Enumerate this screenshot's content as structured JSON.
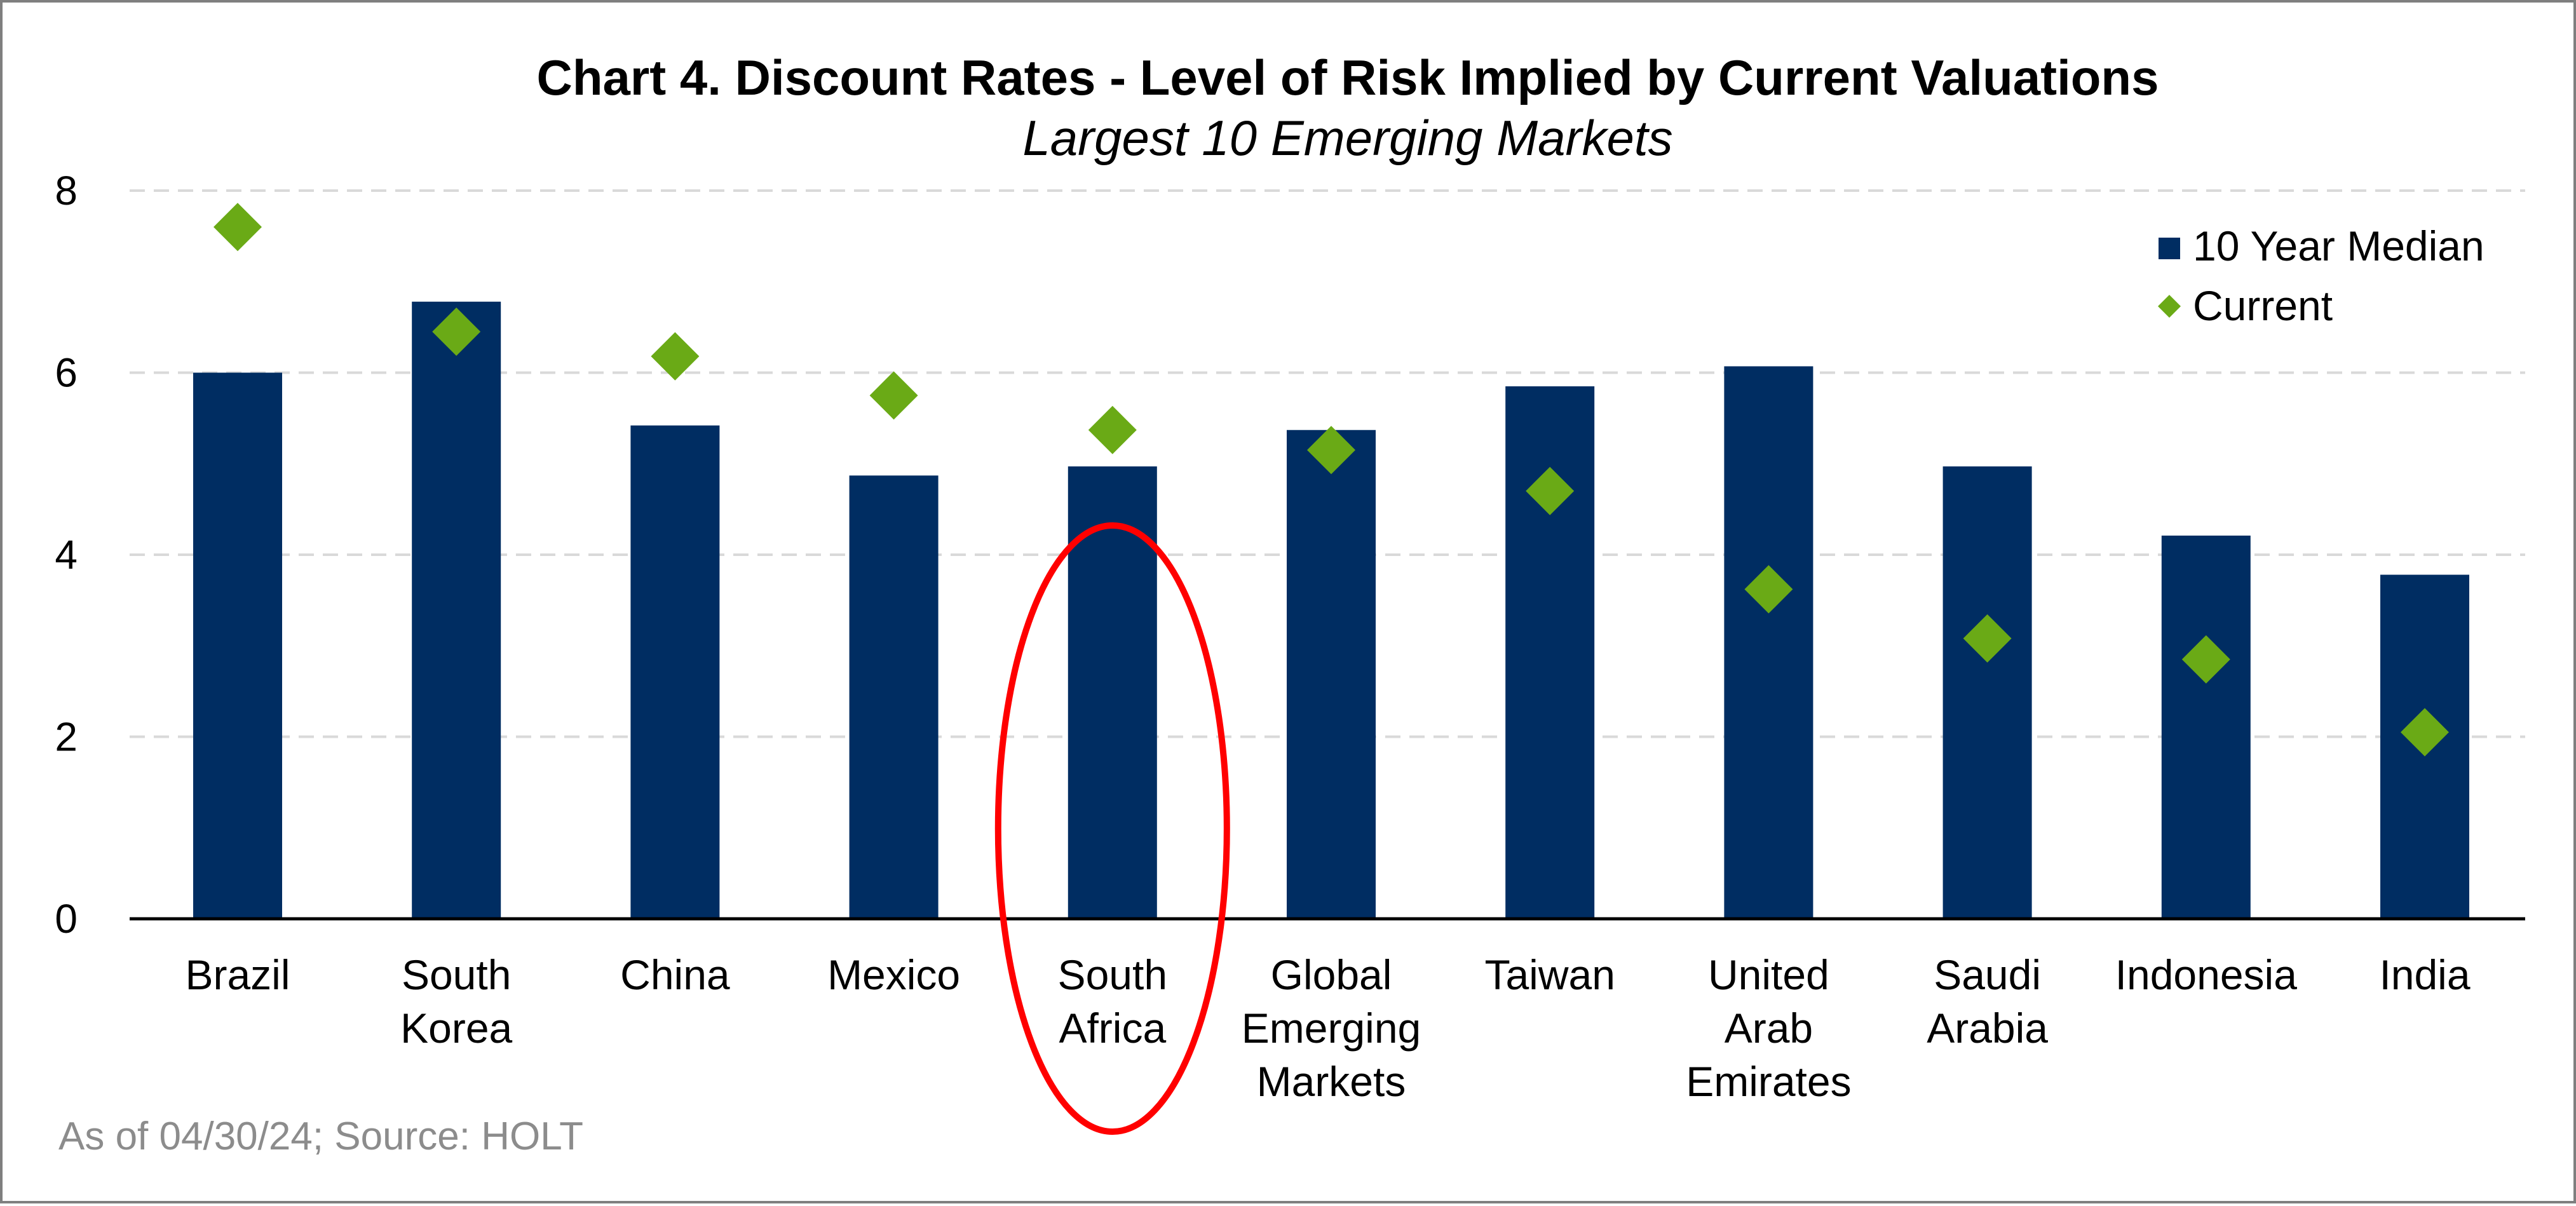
{
  "chart_data": {
    "type": "bar",
    "title": "Chart 4. Discount Rates - Level of Risk Implied by Current Valuations",
    "subtitle": "Largest 10 Emerging Markets",
    "categories": [
      [
        "Brazil"
      ],
      [
        "South",
        "Korea"
      ],
      [
        "China"
      ],
      [
        "Mexico"
      ],
      [
        "South",
        "Africa"
      ],
      [
        "Global",
        "Emerging",
        "Markets"
      ],
      [
        "Taiwan"
      ],
      [
        "United",
        "Arab",
        "Emirates"
      ],
      [
        "Saudi",
        "Arabia"
      ],
      [
        "Indonesia"
      ],
      [
        "India"
      ]
    ],
    "series": [
      {
        "name": "10 Year Median",
        "kind": "bar",
        "color": "#002d62",
        "values": [
          6.0,
          6.78,
          5.42,
          4.87,
          4.97,
          5.37,
          5.85,
          6.07,
          4.97,
          4.21,
          3.78
        ]
      },
      {
        "name": "Current",
        "kind": "diamond",
        "color": "#6aaa16",
        "values": [
          7.6,
          6.45,
          6.18,
          5.75,
          5.37,
          5.15,
          4.7,
          3.62,
          3.08,
          2.85,
          2.05
        ]
      }
    ],
    "ylim": [
      0,
      8
    ],
    "yticks": [
      0,
      2,
      4,
      6,
      8
    ],
    "grid": true,
    "legend": "top-right",
    "highlight": {
      "category": "South Africa",
      "shape": "ellipse",
      "color": "#ff0000"
    }
  },
  "footer": {
    "source": "As of 04/30/24; Source: HOLT"
  }
}
